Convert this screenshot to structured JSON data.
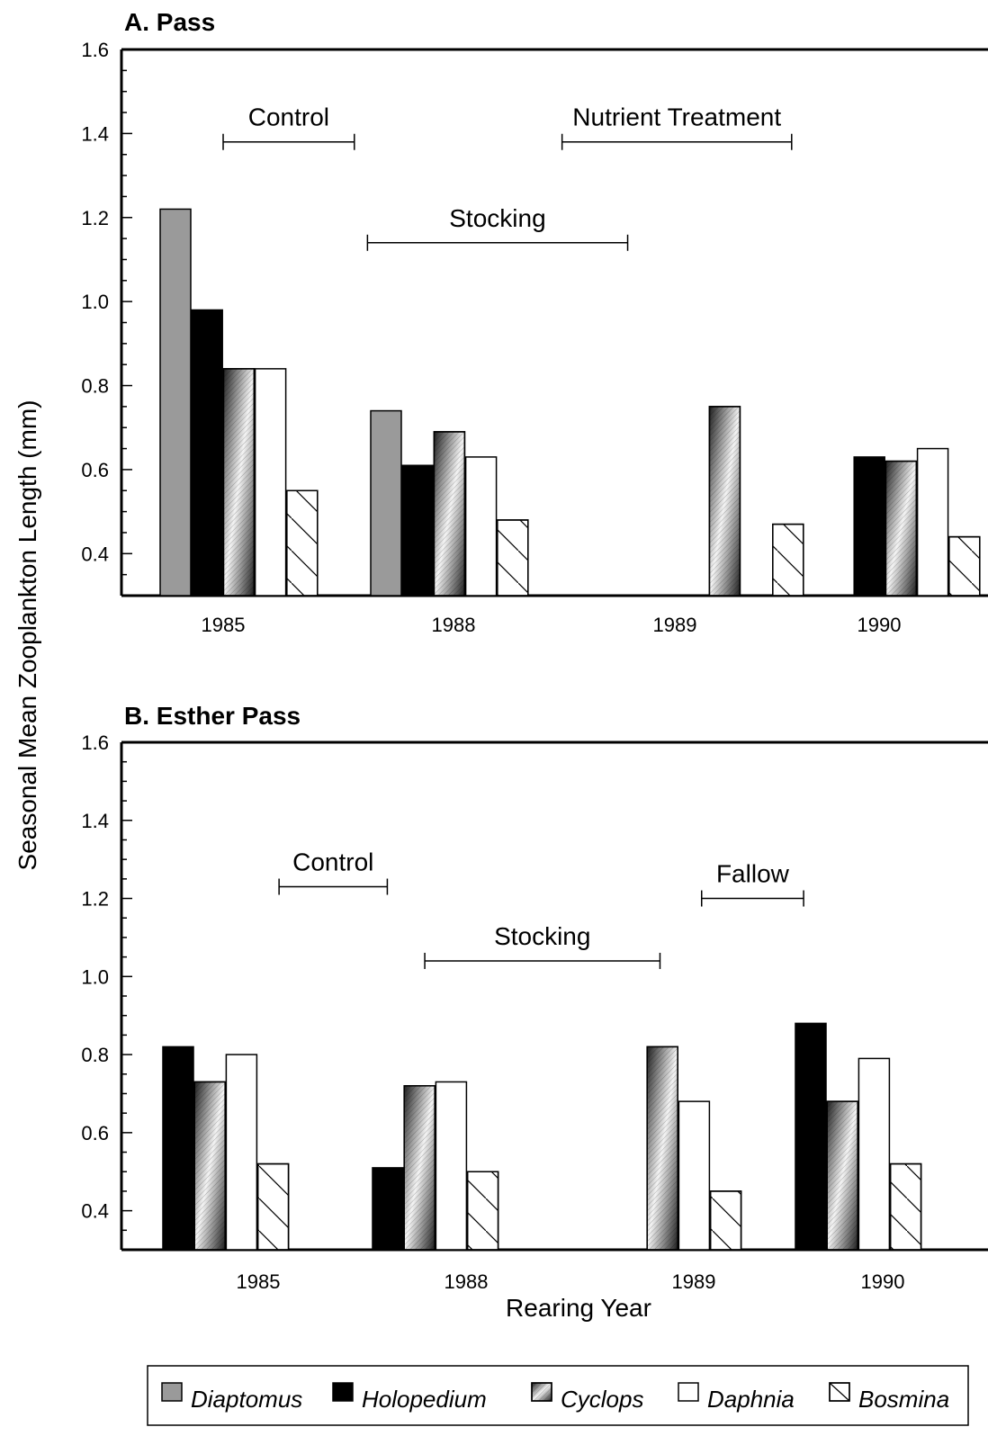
{
  "chart_data": {
    "type": "bar",
    "ylabel": "Seasonal Mean Zooplankton Length (mm)",
    "xlabel": "Rearing Year",
    "ylim": [
      0.3,
      1.6
    ],
    "yticks": [
      "0.4",
      "0.6",
      "0.8",
      "1.0",
      "1.2",
      "1.4",
      "1.6"
    ],
    "legend": [
      {
        "name": "Diaptomus",
        "fill": "gray"
      },
      {
        "name": "Holopedium",
        "fill": "black"
      },
      {
        "name": "Cyclops",
        "fill": "gradient-hatch"
      },
      {
        "name": "Daphnia",
        "fill": "white"
      },
      {
        "name": "Bosmina",
        "fill": "diagonal-hatch"
      }
    ],
    "panels": [
      {
        "title": "A.  Pass",
        "categories": [
          "1985",
          "1988",
          "1989",
          "1990"
        ],
        "series": [
          {
            "name": "Diaptomus",
            "values": [
              1.22,
              0.74,
              null,
              null
            ]
          },
          {
            "name": "Holopedium",
            "values": [
              0.98,
              0.61,
              null,
              0.63
            ]
          },
          {
            "name": "Cyclops",
            "values": [
              0.84,
              0.69,
              0.75,
              0.62
            ]
          },
          {
            "name": "Daphnia",
            "values": [
              0.84,
              0.63,
              null,
              0.65
            ]
          },
          {
            "name": "Bosmina",
            "values": [
              0.55,
              0.48,
              0.47,
              0.44
            ]
          }
        ],
        "annotations": [
          {
            "label": "Control",
            "from": 0.0,
            "to": 0.6,
            "y": 1.38
          },
          {
            "label": "Stocking",
            "from": 0.66,
            "to": 1.85,
            "y": 1.14
          },
          {
            "label": "Nutrient Treatment",
            "from": 1.55,
            "to": 2.6,
            "y": 1.38
          }
        ]
      },
      {
        "title": "B.  Esther Pass",
        "categories": [
          "1985",
          "1988",
          "1989",
          "1990"
        ],
        "series": [
          {
            "name": "Diaptomus",
            "values": [
              null,
              null,
              null,
              null
            ]
          },
          {
            "name": "Holopedium",
            "values": [
              0.82,
              0.51,
              null,
              0.88
            ]
          },
          {
            "name": "Cyclops",
            "values": [
              0.73,
              0.72,
              0.82,
              0.68
            ]
          },
          {
            "name": "Daphnia",
            "values": [
              0.8,
              0.73,
              0.68,
              0.79
            ]
          },
          {
            "name": "Bosmina",
            "values": [
              0.52,
              0.5,
              0.45,
              0.52
            ]
          }
        ],
        "annotations": [
          {
            "label": "Control",
            "from": 0.1,
            "to": 0.62,
            "y": 1.23
          },
          {
            "label": "Stocking",
            "from": 0.8,
            "to": 1.93,
            "y": 1.04
          },
          {
            "label": "Fallow",
            "from": 2.13,
            "to": 2.62,
            "y": 1.2
          }
        ]
      }
    ]
  }
}
